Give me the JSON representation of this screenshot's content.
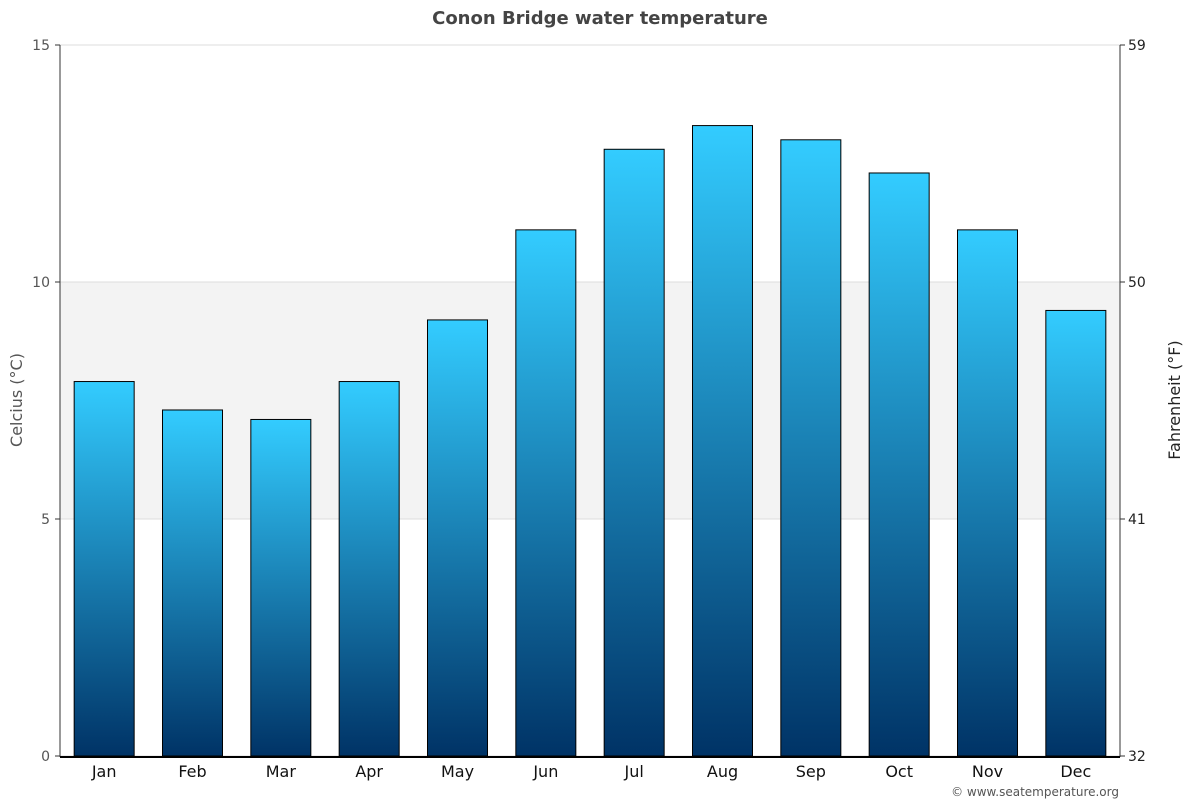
{
  "chart_data": {
    "type": "bar",
    "title": "Conon Bridge water temperature",
    "categories": [
      "Jan",
      "Feb",
      "Mar",
      "Apr",
      "May",
      "Jun",
      "Jul",
      "Aug",
      "Sep",
      "Oct",
      "Nov",
      "Dec"
    ],
    "values": [
      7.9,
      7.3,
      7.1,
      7.9,
      9.2,
      11.1,
      12.8,
      13.3,
      13.0,
      12.3,
      11.1,
      9.4
    ],
    "ylabel": "Celcius (°C)",
    "y2label": "Fahrenheit (°F)",
    "ylim": [
      0,
      15
    ],
    "yticks": [
      "0",
      "5",
      "10",
      "15"
    ],
    "y2ticks": [
      "32",
      "41",
      "50",
      "59"
    ],
    "grid": true,
    "highlight_band": [
      5,
      10
    ],
    "colors": {
      "bar_top": "#33ccff",
      "bar_bottom": "#003366",
      "band": "#f3f3f3"
    },
    "credit": "© www.seatemperature.org"
  }
}
